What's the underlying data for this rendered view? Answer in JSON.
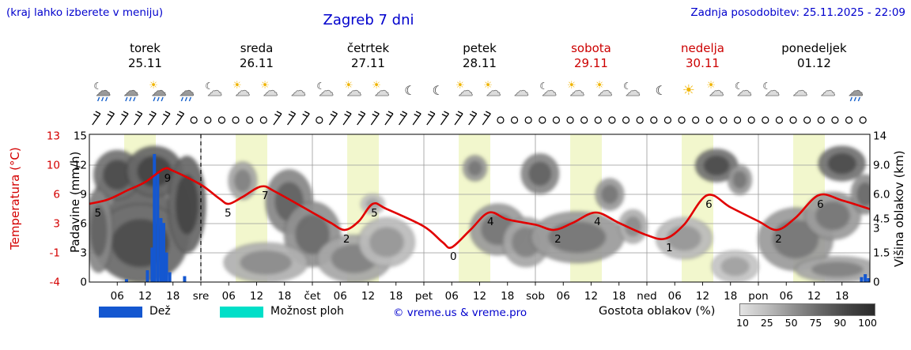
{
  "header": {
    "hint": "(kraj lahko izberete v meniju)",
    "title": "Zagreb 7 dni",
    "updated": "Zadnja posodobitev: 25.11.2025 - 22:09"
  },
  "days": [
    {
      "name": "torek",
      "date": "25.11",
      "color": "#000000"
    },
    {
      "name": "sreda",
      "date": "26.11",
      "color": "#000000"
    },
    {
      "name": "četrtek",
      "date": "27.11",
      "color": "#000000"
    },
    {
      "name": "petek",
      "date": "28.11",
      "color": "#000000"
    },
    {
      "name": "sobota",
      "date": "29.11",
      "color": "#cc0000"
    },
    {
      "name": "nedelja",
      "date": "30.11",
      "color": "#cc0000"
    },
    {
      "name": "ponedeljek",
      "date": "01.12",
      "color": "#000000"
    }
  ],
  "axes": {
    "temp_label": "Temperatura (°C)",
    "temp_ticks": [
      "13",
      "10",
      "6",
      "3",
      "-1",
      "-4"
    ],
    "precip_label": "Padavine (mm/h)",
    "precip_ticks": [
      "15",
      "12",
      "9",
      "6",
      "3",
      "0"
    ],
    "cloud_label": "Višina oblakov (km)",
    "cloud_ticks": [
      "14",
      "9.0",
      "6.0",
      "4.5",
      "3",
      "1.5",
      "0"
    ],
    "hour_labels": [
      "06",
      "12",
      "18"
    ],
    "day_abbrevs": [
      "sre",
      "čet",
      "pet",
      "sob",
      "ned",
      "pon"
    ]
  },
  "legend": {
    "rain_label": "Dež",
    "rain_color": "#1457d0",
    "showers_label": "Možnost ploh",
    "showers_color": "#00dfc8",
    "credit": "© vreme.us & vreme.pro",
    "cloud_density_label": "Gostota oblakov (%)",
    "cloud_scale": [
      "10",
      "25",
      "50",
      "75",
      "90",
      "100"
    ]
  },
  "chart_data": {
    "type": "meteogram",
    "hours_total": 168,
    "now_line_hour": 24,
    "daylight_band_hours": [
      7.5,
      14.3
    ],
    "colors": {
      "band": "#f2f7cd",
      "temp_line": "#e10000",
      "rain_bar": "#1457d0",
      "grid": "#999999"
    },
    "temperature": {
      "unit": "°C",
      "series": [
        [
          0,
          5
        ],
        [
          4,
          5.5
        ],
        [
          8,
          6.5
        ],
        [
          12,
          7.5
        ],
        [
          16,
          9
        ],
        [
          18,
          8.8
        ],
        [
          24,
          7.2
        ],
        [
          28,
          5.6
        ],
        [
          30,
          5
        ],
        [
          33,
          5.8
        ],
        [
          37,
          7
        ],
        [
          40,
          6.4
        ],
        [
          48,
          4
        ],
        [
          52,
          2.8
        ],
        [
          55,
          2
        ],
        [
          58,
          3
        ],
        [
          61,
          5
        ],
        [
          64,
          4.4
        ],
        [
          72,
          2.4
        ],
        [
          76,
          0.6
        ],
        [
          78,
          0
        ],
        [
          82,
          2
        ],
        [
          86,
          4
        ],
        [
          90,
          3.2
        ],
        [
          96,
          2.6
        ],
        [
          100,
          2
        ],
        [
          104,
          2.8
        ],
        [
          109,
          4
        ],
        [
          114,
          2.8
        ],
        [
          120,
          1.4
        ],
        [
          124,
          1
        ],
        [
          128,
          2.6
        ],
        [
          133,
          6
        ],
        [
          138,
          4.6
        ],
        [
          144,
          3
        ],
        [
          148,
          2
        ],
        [
          152,
          3.4
        ],
        [
          157,
          6
        ],
        [
          162,
          5.4
        ],
        [
          168,
          4.4
        ]
      ],
      "labels": [
        {
          "h": 1.5,
          "v": "5"
        },
        {
          "h": 16.5,
          "v": "9"
        },
        {
          "h": 29.5,
          "v": "5"
        },
        {
          "h": 37.5,
          "v": "7"
        },
        {
          "h": 55,
          "v": "2"
        },
        {
          "h": 61,
          "v": "5"
        },
        {
          "h": 78,
          "v": "0"
        },
        {
          "h": 86,
          "v": "4"
        },
        {
          "h": 100.5,
          "v": "2"
        },
        {
          "h": 109,
          "v": "4"
        },
        {
          "h": 124.5,
          "v": "1"
        },
        {
          "h": 133,
          "v": "6"
        },
        {
          "h": 148,
          "v": "2"
        },
        {
          "h": 157,
          "v": "6"
        }
      ]
    },
    "precip_bars": [
      {
        "h": 8,
        "mm": 0.3
      },
      {
        "h": 12.5,
        "mm": 1.2
      },
      {
        "h": 13.5,
        "mm": 3.5
      },
      {
        "h": 14,
        "mm": 13
      },
      {
        "h": 14.7,
        "mm": 11
      },
      {
        "h": 15.4,
        "mm": 6.5
      },
      {
        "h": 16,
        "mm": 6
      },
      {
        "h": 16.6,
        "mm": 3
      },
      {
        "h": 17.3,
        "mm": 1
      },
      {
        "h": 20.5,
        "mm": 0.6
      },
      {
        "h": 166.2,
        "mm": 0.5
      },
      {
        "h": 167,
        "mm": 0.8
      },
      {
        "h": 167.7,
        "mm": 0.4
      }
    ],
    "wind": [
      "b",
      "b",
      "b",
      "b",
      "b",
      "b",
      "b",
      "o",
      "o",
      "o",
      "o",
      "o",
      "o",
      "b",
      "b",
      "b",
      "o",
      "b",
      "b",
      "b",
      "b",
      "b",
      "b",
      "b",
      "b",
      "b",
      "b",
      "b",
      "b",
      "o",
      "o",
      "o",
      "o",
      "o",
      "o",
      "o",
      "o",
      "o",
      "o",
      "o",
      "o",
      "o",
      "o",
      "o",
      "o",
      "o",
      "o",
      "o",
      "o",
      "o",
      "o",
      "o",
      "o",
      "o",
      "o",
      "o"
    ],
    "icons": [
      "moon-cloud-rain",
      "cloud-rain",
      "sun-cloud-rain",
      "cloud-rain",
      "moon-cloud",
      "sun-cloud",
      "sun-cloud",
      "cloud",
      "moon-cloud",
      "sun-cloud",
      "sun-cloud",
      "moon",
      "moon",
      "sun-cloud",
      "sun-cloud",
      "cloud",
      "moon-cloud",
      "sun-cloud",
      "sun-cloud",
      "moon-cloud",
      "moon",
      "sun",
      "sun-cloud",
      "moon-cloud",
      "moon-cloud",
      "cloud",
      "cloud",
      "cloud-rain"
    ],
    "clouds": [
      {
        "h": 11,
        "km": 5,
        "dh": 11,
        "dkm": 5.5,
        "shade": 0.55
      },
      {
        "h": 6,
        "km": 8.5,
        "dh": 5,
        "dkm": 3,
        "shade": 0.7
      },
      {
        "h": 14,
        "km": 9,
        "dh": 6,
        "dkm": 3.2,
        "shade": 0.75
      },
      {
        "h": 11,
        "km": 2.5,
        "dh": 10,
        "dkm": 2.5,
        "shade": 0.7
      },
      {
        "h": 21,
        "km": 6,
        "dh": 4,
        "dkm": 4.5,
        "shade": 0.75
      },
      {
        "h": 2,
        "km": 3.5,
        "dh": 3,
        "dkm": 3,
        "shade": 0.6
      },
      {
        "h": 33,
        "km": 7.5,
        "dh": 3,
        "dkm": 2,
        "shade": 0.45
      },
      {
        "h": 43,
        "km": 5.5,
        "dh": 5,
        "dkm": 3,
        "shade": 0.6
      },
      {
        "h": 48,
        "km": 3,
        "dh": 6,
        "dkm": 2.2,
        "shade": 0.55
      },
      {
        "h": 38,
        "km": 1,
        "dh": 9,
        "dkm": 1,
        "shade": 0.4
      },
      {
        "h": 57,
        "km": 1.2,
        "dh": 8,
        "dkm": 1.2,
        "shade": 0.45
      },
      {
        "h": 64,
        "km": 2.2,
        "dh": 6,
        "dkm": 1.4,
        "shade": 0.35
      },
      {
        "h": 61,
        "km": 5,
        "dh": 2.5,
        "dkm": 1,
        "shade": 0.3
      },
      {
        "h": 83,
        "km": 9,
        "dh": 2.5,
        "dkm": 1.6,
        "shade": 0.5
      },
      {
        "h": 88,
        "km": 3.2,
        "dh": 6,
        "dkm": 1.8,
        "shade": 0.5
      },
      {
        "h": 94,
        "km": 2.2,
        "dh": 5,
        "dkm": 1.4,
        "shade": 0.45
      },
      {
        "h": 97,
        "km": 8.5,
        "dh": 4,
        "dkm": 2.4,
        "shade": 0.6
      },
      {
        "h": 105,
        "km": 2.6,
        "dh": 10,
        "dkm": 1.6,
        "shade": 0.5
      },
      {
        "h": 112,
        "km": 6,
        "dh": 3,
        "dkm": 1.6,
        "shade": 0.5
      },
      {
        "h": 117,
        "km": 3.2,
        "dh": 3,
        "dkm": 1.2,
        "shade": 0.4
      },
      {
        "h": 128,
        "km": 2.4,
        "dh": 6,
        "dkm": 1.2,
        "shade": 0.35
      },
      {
        "h": 135,
        "km": 9.5,
        "dh": 4.5,
        "dkm": 2.2,
        "shade": 0.7
      },
      {
        "h": 140,
        "km": 7.5,
        "dh": 2.5,
        "dkm": 1.5,
        "shade": 0.5
      },
      {
        "h": 139,
        "km": 0.8,
        "dh": 5,
        "dkm": 0.8,
        "shade": 0.3
      },
      {
        "h": 152,
        "km": 2.6,
        "dh": 8,
        "dkm": 2,
        "shade": 0.5
      },
      {
        "h": 162,
        "km": 9.8,
        "dh": 5,
        "dkm": 2.4,
        "shade": 0.7
      },
      {
        "h": 160,
        "km": 4.2,
        "dh": 6,
        "dkm": 2,
        "shade": 0.5
      },
      {
        "h": 161,
        "km": 0.6,
        "dh": 9,
        "dkm": 0.7,
        "shade": 0.45
      },
      {
        "h": 167,
        "km": 6,
        "dh": 3,
        "dkm": 2,
        "shade": 0.55
      }
    ]
  }
}
